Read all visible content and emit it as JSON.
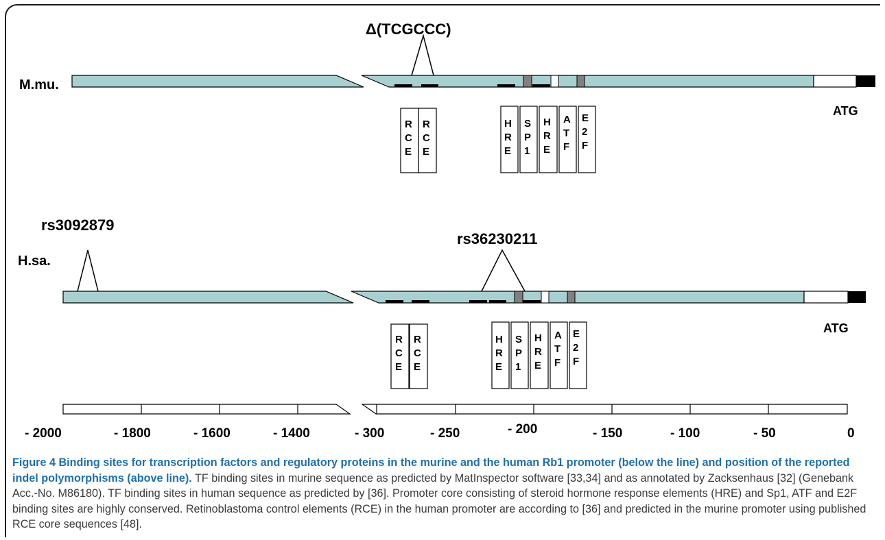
{
  "figure": {
    "deletion_label": "Δ(TCGCCC)",
    "mouse_label": "M.mu.",
    "human_label": "H.sa.",
    "atg_label": "ATG",
    "snp_left_label": "rs3092879",
    "snp_right_label": "rs36230211",
    "boxes": [
      [
        "R",
        "C",
        "E"
      ],
      [
        "R",
        "C",
        "E"
      ],
      [
        "H",
        "R",
        "E"
      ],
      [
        "S",
        "P",
        "1"
      ],
      [
        "H",
        "R",
        "E"
      ],
      [
        "A",
        "T",
        "F"
      ],
      [
        "E",
        "2",
        "F"
      ]
    ],
    "scale_ticks": [
      "- 2000",
      "- 1800",
      "- 1600",
      "- 1400",
      "- 300",
      "- 250",
      "- 200",
      "- 150",
      "- 100",
      "- 50",
      "0"
    ],
    "colors": {
      "promoter": "#a9d0d0",
      "element": "#808080",
      "atg": "#000000"
    }
  },
  "caption": {
    "figure_number": "Figure 4",
    "title": "Binding sites for transcription factors and regulatory proteins in the murine and the human Rb1 promoter (below the line) and position of the reported indel polymorphisms (above line).",
    "body": "TF binding sites in murine sequence as predicted by MatInspector software [33,34] and as annotated by Zacksenhaus [32] (Genebank Acc.-No. M86180). TF binding sites in human sequence as predicted by [36]. Promoter core consisting of steroid hormone response elements (HRE) and Sp1, ATF and E2F binding sites are highly conserved. Retinoblastoma control elements (RCE) in the human promoter are according to [36] and predicted in the murine promoter using published RCE core sequences [48]."
  }
}
